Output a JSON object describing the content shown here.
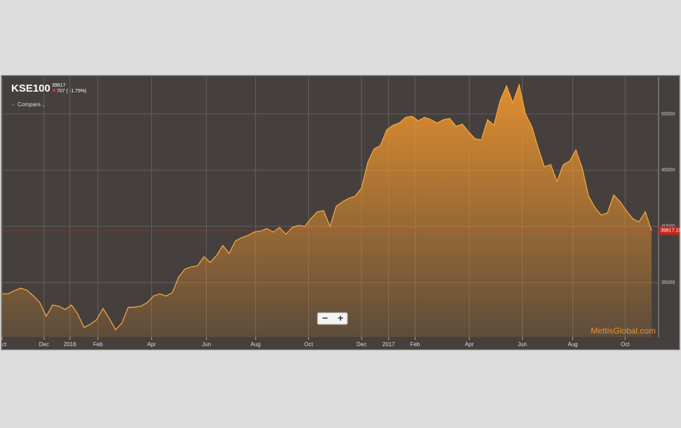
{
  "chart_data": {
    "type": "area",
    "title": "KSE100",
    "last_price": "39617",
    "change": "707 ( -1.75%)",
    "compare": "Compare...",
    "watermark": "MettisGlobal.com",
    "zoom_out": "−",
    "zoom_in": "+",
    "last_value_label": "39617.19",
    "series": [
      {
        "name": "KSE100",
        "color": "#f5a53c",
        "values": [
          34000,
          34000,
          34300,
          34500,
          34300,
          33800,
          33200,
          32000,
          33000,
          32900,
          32600,
          33000,
          32200,
          31000,
          31300,
          31700,
          32700,
          31800,
          30800,
          31400,
          32800,
          32800,
          32900,
          33200,
          33800,
          34000,
          33800,
          34100,
          35500,
          36200,
          36400,
          36500,
          37300,
          36800,
          37400,
          38300,
          37600,
          38700,
          39000,
          39200,
          39500,
          39600,
          39800,
          39500,
          39900,
          39300,
          39900,
          40100,
          40000,
          40700,
          41300,
          41400,
          40000,
          41800,
          42200,
          42500,
          42700,
          43400,
          45700,
          46900,
          47200,
          48600,
          49000,
          49200,
          49700,
          49800,
          49400,
          49700,
          49500,
          49200,
          49500,
          49600,
          48900,
          49100,
          48400,
          47800,
          47700,
          49500,
          49000,
          51200,
          52500,
          51000,
          52600,
          50000,
          48900,
          47000,
          45300,
          45500,
          44000,
          45500,
          45800,
          46800,
          45200,
          42700,
          41700,
          41000,
          41200,
          42800,
          42200,
          41400,
          40700,
          40400,
          41300,
          39617.19
        ]
      }
    ],
    "xlim": [
      0,
      103
    ],
    "xticks": [
      {
        "value": 0,
        "label": "ct"
      },
      {
        "value": 6.65,
        "label": "Dec"
      },
      {
        "value": 10.75,
        "label": "2016"
      },
      {
        "value": 15.2,
        "label": "Feb"
      },
      {
        "value": 23.7,
        "label": "Apr"
      },
      {
        "value": 32.4,
        "label": "Jun"
      },
      {
        "value": 40.2,
        "label": "Aug"
      },
      {
        "value": 48.6,
        "label": "Oct"
      },
      {
        "value": 57.0,
        "label": "Dec"
      },
      {
        "value": 61.3,
        "label": "2017"
      },
      {
        "value": 65.5,
        "label": "Feb"
      },
      {
        "value": 74.1,
        "label": "Apr"
      },
      {
        "value": 82.5,
        "label": "Jun"
      },
      {
        "value": 90.5,
        "label": "Aug"
      },
      {
        "value": 98.8,
        "label": "Oct"
      }
    ],
    "ylim": [
      30150,
      53300
    ],
    "yticks": [
      35000,
      40000,
      45000,
      50000
    ],
    "grid": true
  }
}
